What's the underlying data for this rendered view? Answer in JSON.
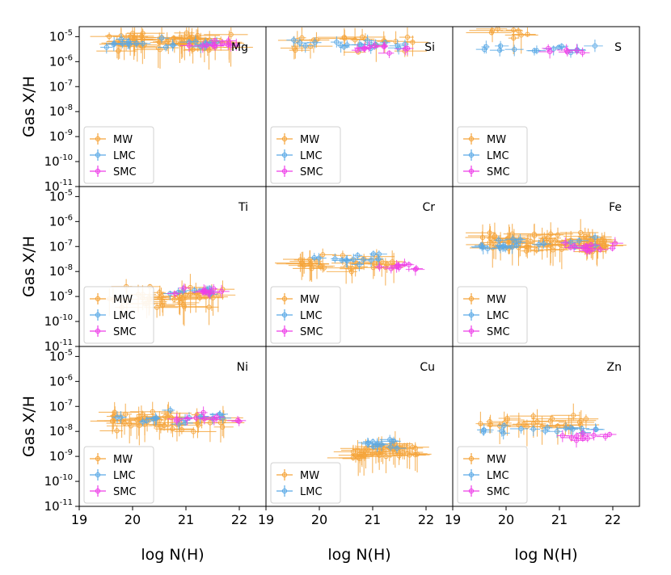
{
  "figure": {
    "ylabel": "Gas X/H",
    "xlabel": "log N(H)",
    "colors": {
      "MW": "#f5a43a",
      "LMC": "#5aa9e6",
      "SMC": "#ee3ee8"
    },
    "xlim": [
      19,
      22.5
    ],
    "ylim_log10": [
      -11,
      -4.6
    ],
    "xticks": [
      "19",
      "20",
      "21",
      "22"
    ],
    "yticks": [
      {
        "base": "10",
        "exp": "-5"
      },
      {
        "base": "10",
        "exp": "-6"
      },
      {
        "base": "10",
        "exp": "-7"
      },
      {
        "base": "10",
        "exp": "-8"
      },
      {
        "base": "10",
        "exp": "-9"
      },
      {
        "base": "10",
        "exp": "-10"
      },
      {
        "base": "10",
        "exp": "-11"
      }
    ],
    "ytick_values": [
      -5,
      -6,
      -7,
      -8,
      -9,
      -10,
      -11
    ]
  },
  "chart_data": [
    {
      "type": "scatter",
      "element": "Mg",
      "legend": [
        "MW",
        "LMC",
        "SMC"
      ],
      "legend_loc": "lower-left",
      "series": [
        {
          "name": "MW",
          "x_range": [
            19.5,
            21.9
          ],
          "log10_y_center": -5.2,
          "log10_y_spread": 0.5,
          "n": 60
        },
        {
          "name": "LMC",
          "x_range": [
            19.5,
            21.6
          ],
          "log10_y_center": -5.3,
          "log10_y_spread": 0.3,
          "n": 22
        },
        {
          "name": "SMC",
          "x_range": [
            21.0,
            22.0
          ],
          "log10_y_center": -5.3,
          "log10_y_spread": 0.3,
          "n": 12
        }
      ]
    },
    {
      "type": "scatter",
      "element": "Si",
      "legend": [
        "MW",
        "LMC",
        "SMC"
      ],
      "legend_loc": "lower-left",
      "series": [
        {
          "name": "MW",
          "x_range": [
            19.5,
            21.8
          ],
          "log10_y_center": -5.2,
          "log10_y_spread": 0.5,
          "n": 20
        },
        {
          "name": "LMC",
          "x_range": [
            19.5,
            21.7
          ],
          "log10_y_center": -5.3,
          "log10_y_spread": 0.3,
          "n": 18
        },
        {
          "name": "SMC",
          "x_range": [
            20.5,
            21.7
          ],
          "log10_y_center": -5.5,
          "log10_y_spread": 0.3,
          "n": 10
        }
      ]
    },
    {
      "type": "scatter",
      "element": "S",
      "legend": [
        "MW",
        "LMC",
        "SMC"
      ],
      "legend_loc": "lower-left",
      "series": [
        {
          "name": "MW",
          "x_range": [
            19.6,
            20.6
          ],
          "log10_y_center": -4.8,
          "log10_y_spread": 0.3,
          "n": 10
        },
        {
          "name": "LMC",
          "x_range": [
            19.5,
            21.7
          ],
          "log10_y_center": -5.4,
          "log10_y_spread": 0.3,
          "n": 14
        },
        {
          "name": "SMC",
          "x_range": [
            20.7,
            21.7
          ],
          "log10_y_center": -5.5,
          "log10_y_spread": 0.4,
          "n": 6
        }
      ]
    },
    {
      "type": "scatter",
      "element": "Ti",
      "legend": [
        "MW",
        "LMC",
        "SMC"
      ],
      "legend_loc": "lower-left",
      "series": [
        {
          "name": "MW",
          "x_range": [
            19.5,
            21.7
          ],
          "log10_y_center": -9.0,
          "log10_y_spread": 0.6,
          "n": 40
        },
        {
          "name": "LMC",
          "x_range": [
            20.6,
            21.5
          ],
          "log10_y_center": -8.8,
          "log10_y_spread": 0.3,
          "n": 8
        },
        {
          "name": "SMC",
          "x_range": [
            20.7,
            22.0
          ],
          "log10_y_center": -8.8,
          "log10_y_spread": 0.3,
          "n": 10
        }
      ]
    },
    {
      "type": "scatter",
      "element": "Cr",
      "legend": [
        "MW",
        "LMC",
        "SMC"
      ],
      "legend_loc": "lower-left",
      "series": [
        {
          "name": "MW",
          "x_range": [
            19.5,
            21.6
          ],
          "log10_y_center": -7.7,
          "log10_y_spread": 0.5,
          "n": 30
        },
        {
          "name": "LMC",
          "x_range": [
            19.9,
            21.5
          ],
          "log10_y_center": -7.5,
          "log10_y_spread": 0.3,
          "n": 14
        },
        {
          "name": "SMC",
          "x_range": [
            21.0,
            21.9
          ],
          "log10_y_center": -7.8,
          "log10_y_spread": 0.3,
          "n": 9
        }
      ]
    },
    {
      "type": "scatter",
      "element": "Fe",
      "legend": [
        "MW",
        "LMC",
        "SMC"
      ],
      "legend_loc": "lower-left",
      "series": [
        {
          "name": "MW",
          "x_range": [
            19.5,
            21.9
          ],
          "log10_y_center": -6.9,
          "log10_y_spread": 0.6,
          "n": 70
        },
        {
          "name": "LMC",
          "x_range": [
            19.5,
            21.8
          ],
          "log10_y_center": -6.9,
          "log10_y_spread": 0.4,
          "n": 22
        },
        {
          "name": "SMC",
          "x_range": [
            21.0,
            22.1
          ],
          "log10_y_center": -7.0,
          "log10_y_spread": 0.4,
          "n": 12
        }
      ]
    },
    {
      "type": "scatter",
      "element": "Ni",
      "legend": [
        "MW",
        "LMC",
        "SMC"
      ],
      "legend_loc": "lower-left",
      "series": [
        {
          "name": "MW",
          "x_range": [
            19.5,
            21.8
          ],
          "log10_y_center": -7.6,
          "log10_y_spread": 0.6,
          "n": 45
        },
        {
          "name": "LMC",
          "x_range": [
            19.6,
            21.7
          ],
          "log10_y_center": -7.5,
          "log10_y_spread": 0.4,
          "n": 18
        },
        {
          "name": "SMC",
          "x_range": [
            20.6,
            22.0
          ],
          "log10_y_center": -7.5,
          "log10_y_spread": 0.3,
          "n": 10
        }
      ]
    },
    {
      "type": "scatter",
      "element": "Cu",
      "legend": [
        "MW",
        "LMC"
      ],
      "legend_loc": "lower-left",
      "series": [
        {
          "name": "MW",
          "x_range": [
            20.6,
            21.9
          ],
          "log10_y_center": -8.8,
          "log10_y_spread": 0.4,
          "n": 40
        },
        {
          "name": "LMC",
          "x_range": [
            20.9,
            21.6
          ],
          "log10_y_center": -8.5,
          "log10_y_spread": 0.3,
          "n": 12
        }
      ]
    },
    {
      "type": "scatter",
      "element": "Zn",
      "legend": [
        "MW",
        "LMC",
        "SMC"
      ],
      "legend_loc": "lower-left",
      "series": [
        {
          "name": "MW",
          "x_range": [
            19.5,
            21.5
          ],
          "log10_y_center": -7.6,
          "log10_y_spread": 0.4,
          "n": 25
        },
        {
          "name": "LMC",
          "x_range": [
            19.5,
            21.8
          ],
          "log10_y_center": -7.9,
          "log10_y_spread": 0.3,
          "n": 18
        },
        {
          "name": "SMC",
          "x_range": [
            21.0,
            22.0
          ],
          "log10_y_center": -8.2,
          "log10_y_spread": 0.3,
          "n": 10
        }
      ]
    }
  ]
}
